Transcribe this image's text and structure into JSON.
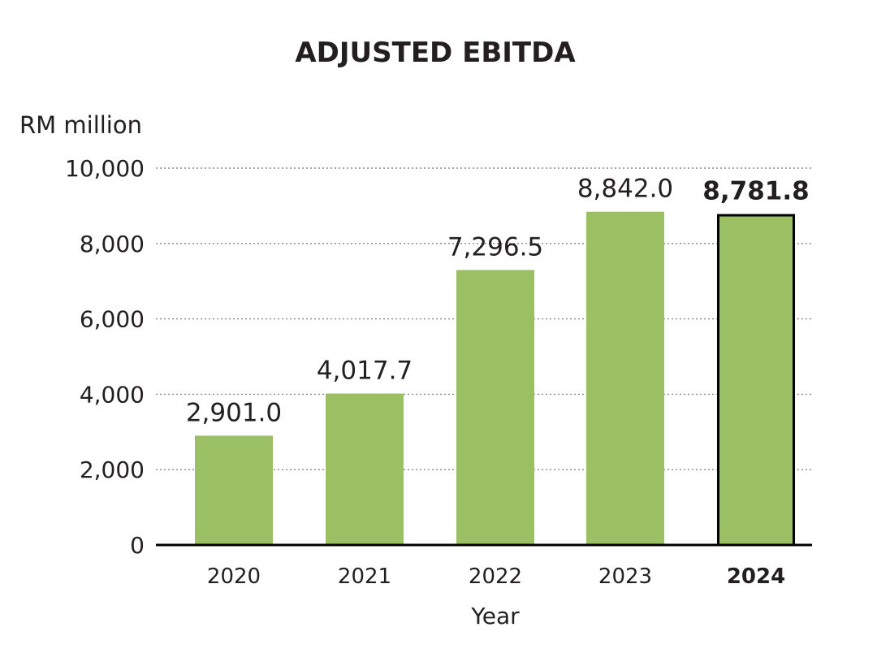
{
  "chart_data": {
    "type": "bar",
    "title": "ADJUSTED EBITDA",
    "unit_label": "RM million",
    "xlabel": "Year",
    "ylabel": "",
    "categories": [
      "2020",
      "2021",
      "2022",
      "2023",
      "2024"
    ],
    "values": [
      2901.0,
      4017.7,
      7296.5,
      8842.0,
      8781.8
    ],
    "value_labels": [
      "2,901.0",
      "4,017.7",
      "7,296.5",
      "8,842.0",
      "8,781.8"
    ],
    "highlight_index": 4,
    "ylim": [
      0,
      10000
    ],
    "yticks": [
      0,
      2000,
      4000,
      6000,
      8000,
      10000
    ],
    "ytick_labels": [
      "0",
      "2,000",
      "4,000",
      "6,000",
      "8,000",
      "10,000"
    ],
    "grid": "dotted horizontal",
    "bar_color": "#9bc063",
    "highlight_border_color": "#000000",
    "text_color": "#231f20"
  }
}
